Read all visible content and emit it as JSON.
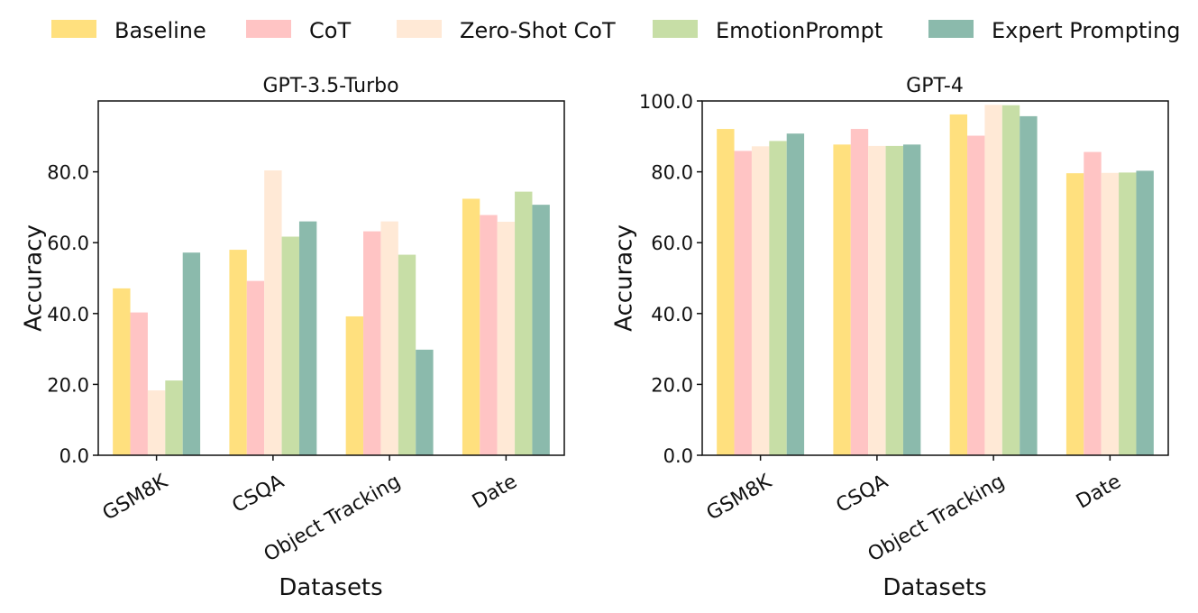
{
  "chart_data": [
    {
      "type": "bar",
      "title": "GPT-3.5-Turbo",
      "xlabel": "Datasets",
      "ylabel": "Accuracy",
      "categories": [
        "GSM8K",
        "CSQA",
        "Object Tracking",
        "Date"
      ],
      "ylim": [
        0,
        100
      ],
      "yticks": [
        "0.0",
        "20.0",
        "40.0",
        "60.0",
        "80.0"
      ],
      "series": [
        {
          "name": "Baseline",
          "values": [
            47.1,
            58.0,
            39.2,
            72.4
          ]
        },
        {
          "name": "CoT",
          "values": [
            40.3,
            49.2,
            63.2,
            67.8
          ]
        },
        {
          "name": "Zero-Shot CoT",
          "values": [
            18.3,
            80.4,
            66.0,
            65.9
          ]
        },
        {
          "name": "EmotionPrompt",
          "values": [
            21.1,
            61.7,
            56.6,
            74.4
          ]
        },
        {
          "name": "Expert Prompting",
          "values": [
            57.2,
            66.0,
            29.8,
            70.7
          ]
        }
      ]
    },
    {
      "type": "bar",
      "title": "GPT-4",
      "xlabel": "Datasets",
      "ylabel": "Accuracy",
      "categories": [
        "GSM8K",
        "CSQA",
        "Object Tracking",
        "Date"
      ],
      "ylim": [
        0,
        100
      ],
      "yticks": [
        "0.0",
        "20.0",
        "40.0",
        "60.0",
        "80.0",
        "100.0"
      ],
      "series": [
        {
          "name": "Baseline",
          "values": [
            92.1,
            87.7,
            96.2,
            79.6
          ]
        },
        {
          "name": "CoT",
          "values": [
            85.9,
            92.1,
            90.2,
            85.6
          ]
        },
        {
          "name": "Zero-Shot CoT",
          "values": [
            87.2,
            87.3,
            98.9,
            79.7
          ]
        },
        {
          "name": "EmotionPrompt",
          "values": [
            88.7,
            87.3,
            98.8,
            79.8
          ]
        },
        {
          "name": "Expert Prompting",
          "values": [
            90.8,
            87.7,
            95.7,
            80.3
          ]
        }
      ]
    }
  ],
  "legend": [
    {
      "name": "Baseline",
      "color": "#ffe07e"
    },
    {
      "name": "CoT",
      "color": "#ffc4c4"
    },
    {
      "name": "Zero-Shot CoT",
      "color": "#ffe9d6"
    },
    {
      "name": "EmotionPrompt",
      "color": "#c7dea6"
    },
    {
      "name": "Expert Prompting",
      "color": "#8bbaac"
    }
  ]
}
